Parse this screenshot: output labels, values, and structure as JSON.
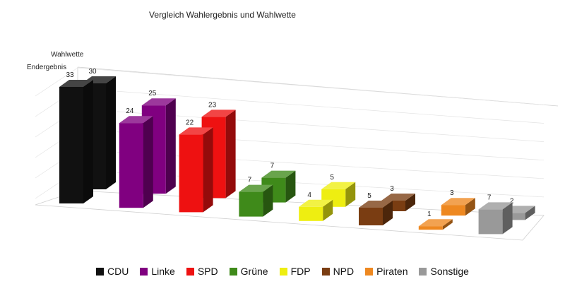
{
  "chart_data": {
    "type": "bar",
    "title": "Vergleich Wahlergebnis und Wahlwette",
    "categories": [
      "CDU",
      "Linke",
      "SPD",
      "Grüne",
      "FDP",
      "NPD",
      "Piraten",
      "Sonstige"
    ],
    "colors": [
      "#111111",
      "#800080",
      "#ee1111",
      "#3f8a1a",
      "#eeee11",
      "#7a3d12",
      "#ee8820",
      "#999999"
    ],
    "series": [
      {
        "name": "Endergebnis",
        "values": [
          33,
          24,
          22,
          7,
          4,
          5,
          1,
          7
        ]
      },
      {
        "name": "Wahlwette",
        "values": [
          30,
          25,
          23,
          7,
          5,
          3,
          3,
          2
        ]
      }
    ],
    "ylim": [
      0,
      35
    ],
    "grid": true,
    "legend_position": "bottom"
  }
}
